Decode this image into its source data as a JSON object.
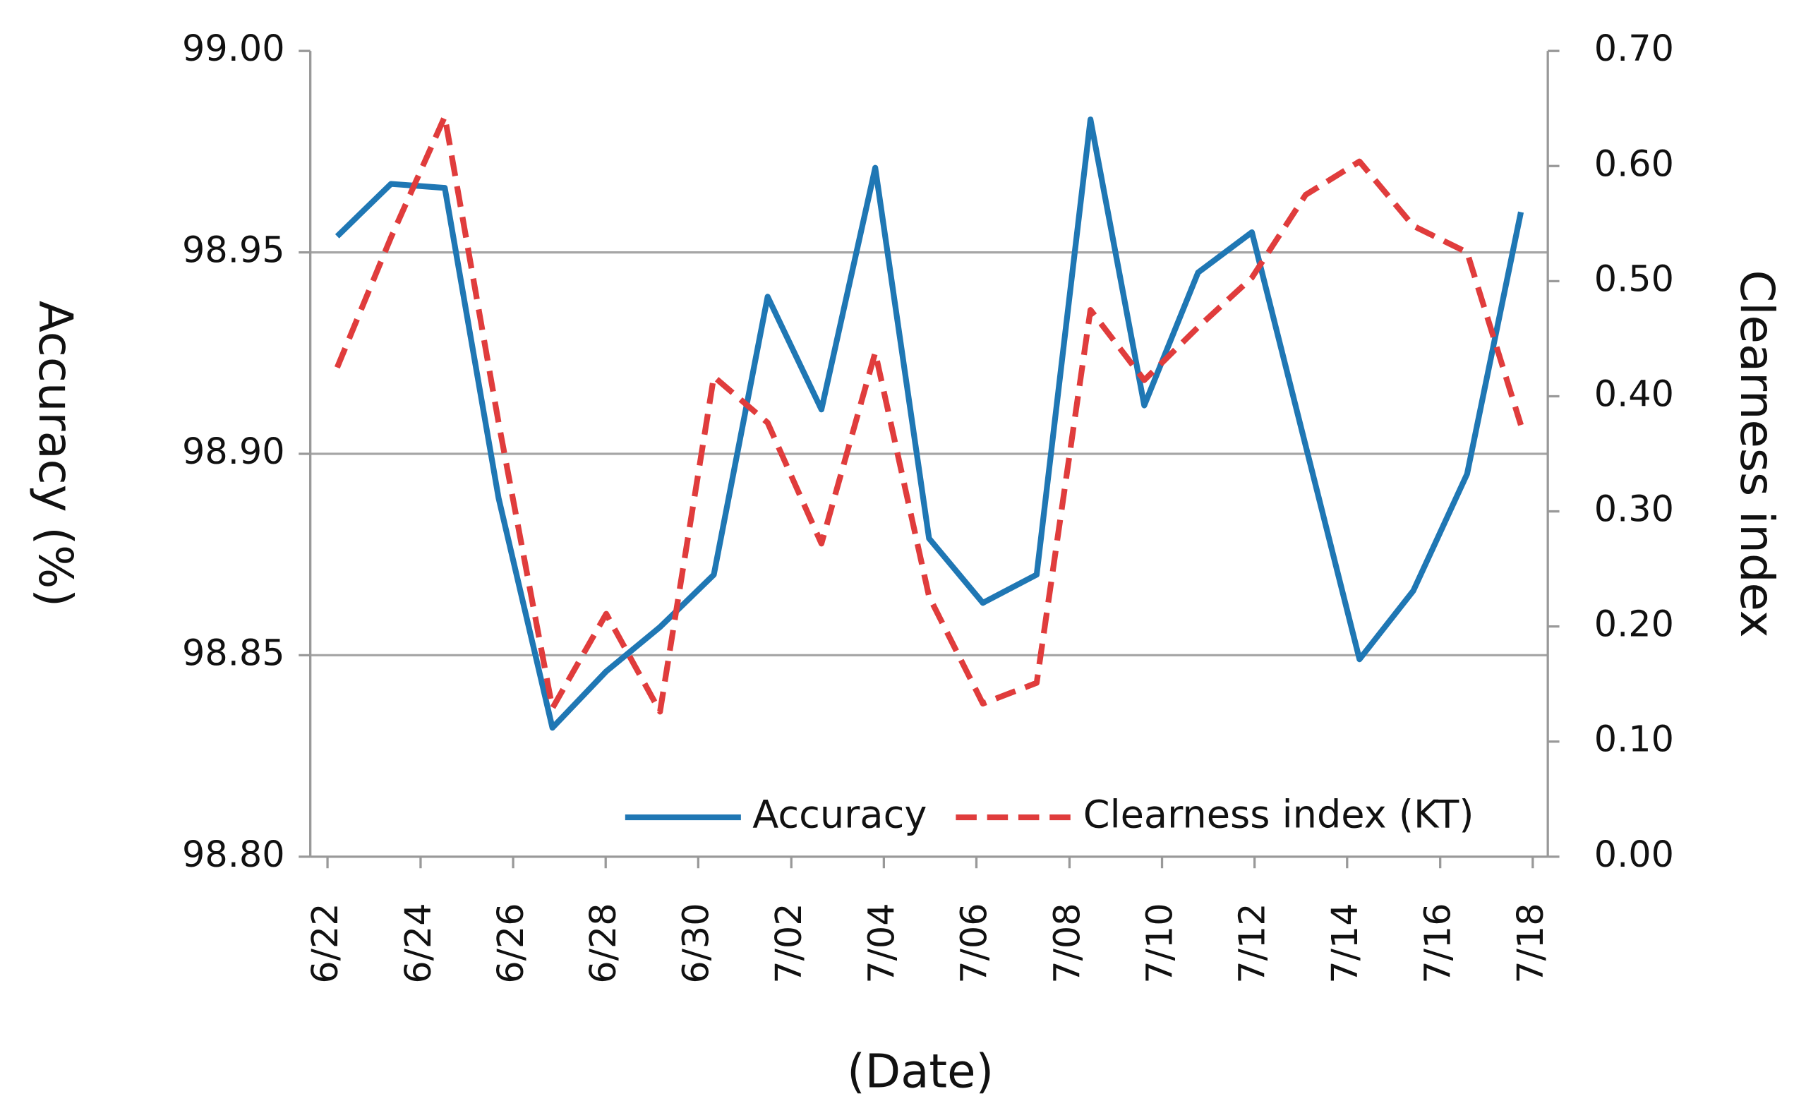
{
  "chart_data": {
    "type": "line",
    "x_label": "(Date)",
    "y_label": "Accuracy  (%)",
    "y2_label": "Clearness index",
    "x": [
      0.5,
      1.5,
      2.5,
      3.5,
      4.5,
      5.5,
      6.5,
      7.5,
      8.5,
      9.5,
      10.5,
      11.5,
      12.5,
      13.5,
      14.5,
      15.5,
      16.5,
      17.5,
      18.5,
      19.5,
      20.5,
      21.5,
      22.5
    ],
    "xlim": [
      0,
      23
    ],
    "xticks": [
      {
        "value": 0.32,
        "label": "6/22"
      },
      {
        "value": 2.05,
        "label": "6/24"
      },
      {
        "value": 3.77,
        "label": "6/26"
      },
      {
        "value": 5.49,
        "label": "6/28"
      },
      {
        "value": 7.21,
        "label": "6/30"
      },
      {
        "value": 8.94,
        "label": "7/02"
      },
      {
        "value": 10.66,
        "label": "7/04"
      },
      {
        "value": 12.38,
        "label": "7/06"
      },
      {
        "value": 14.11,
        "label": "7/08"
      },
      {
        "value": 15.83,
        "label": "7/10"
      },
      {
        "value": 17.55,
        "label": "7/12"
      },
      {
        "value": 19.27,
        "label": "7/14"
      },
      {
        "value": 21.0,
        "label": "7/16"
      },
      {
        "value": 22.72,
        "label": "7/18"
      }
    ],
    "ylim": [
      98.8,
      99.0
    ],
    "yticks": [
      {
        "value": 98.8,
        "label": "98.80"
      },
      {
        "value": 98.85,
        "label": "98.85"
      },
      {
        "value": 98.9,
        "label": "98.90"
      },
      {
        "value": 98.95,
        "label": "98.95"
      },
      {
        "value": 99.0,
        "label": "99.00"
      }
    ],
    "y2lim": [
      0,
      0.7
    ],
    "y2ticks": [
      {
        "value": 0,
        "label": "0.00"
      },
      {
        "value": 0.1,
        "label": "0.10"
      },
      {
        "value": 0.2,
        "label": "0.20"
      },
      {
        "value": 0.3,
        "label": "0.30"
      },
      {
        "value": 0.4,
        "label": "0.40"
      },
      {
        "value": 0.5,
        "label": "0.50"
      },
      {
        "value": 0.6,
        "label": "0.60"
      },
      {
        "value": 0.7,
        "label": "0.70"
      }
    ],
    "grid": true,
    "legend": "bottom-right",
    "series": [
      {
        "name": "Accuracy",
        "color": "#1f77b4",
        "dash": "solid",
        "values": [
          98.954,
          98.967,
          98.966,
          98.889,
          98.832,
          98.846,
          98.857,
          98.87,
          98.939,
          98.911,
          98.971,
          98.879,
          98.863,
          98.87,
          98.983,
          98.912,
          98.945,
          98.955,
          98.902,
          98.849,
          98.866,
          98.895,
          98.96
        ]
      },
      {
        "name": "Clearness index (KT)",
        "color": "#e03c3c",
        "dash": "dashed",
        "axis": "y2",
        "values": [
          0.425,
          0.538,
          0.643,
          0.377,
          0.129,
          0.211,
          0.126,
          0.417,
          0.377,
          0.272,
          0.438,
          0.226,
          0.133,
          0.151,
          0.475,
          0.414,
          0.46,
          0.503,
          0.575,
          0.604,
          0.548,
          0.525,
          0.375
        ]
      }
    ]
  }
}
